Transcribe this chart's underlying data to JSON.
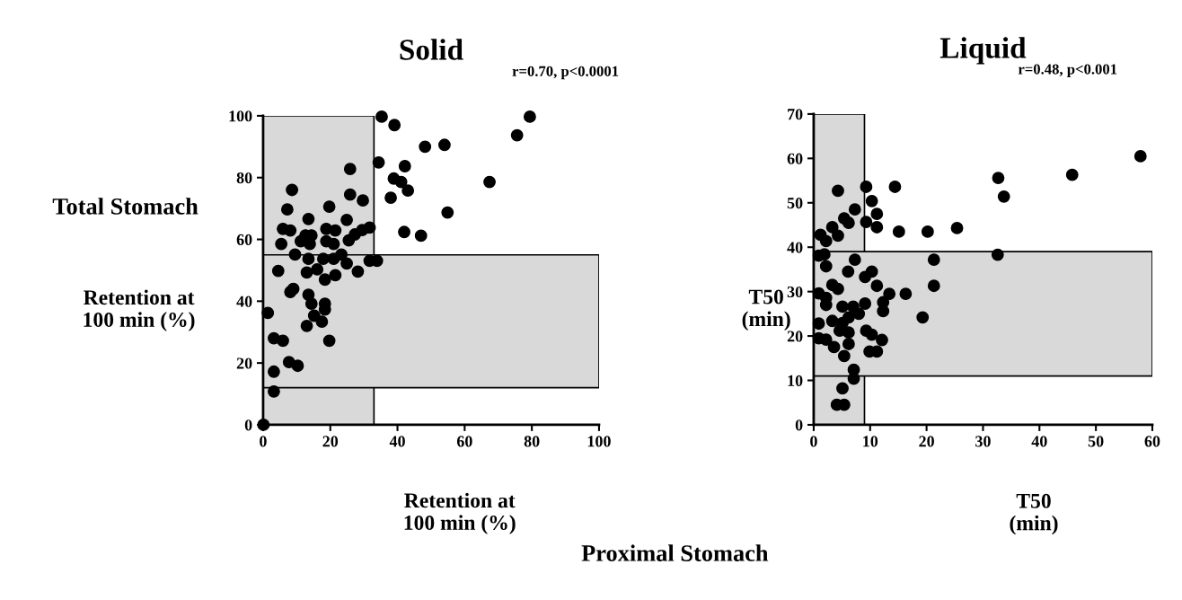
{
  "chart_data": [
    {
      "type": "scatter",
      "title": "Solid",
      "xlabel": "Retention at\n100 min (%)",
      "ylabel": "Retention at\n100 min (%)",
      "annotations": [
        "r=0.70, p<0.0001",
        "Total Stomach"
      ],
      "xlim": [
        0,
        100
      ],
      "ylim": [
        0,
        100
      ],
      "xticks": [
        0,
        20,
        40,
        60,
        80,
        100
      ],
      "yticks": [
        0,
        20,
        40,
        60,
        80,
        100
      ],
      "grid": false,
      "marker": "circle",
      "bands": [
        {
          "axis": "x",
          "from": 0,
          "to": 33,
          "color": "#d9d9d9"
        },
        {
          "axis": "y",
          "from": 12,
          "to": 55,
          "color": "#d9d9d9"
        }
      ],
      "series": [
        {
          "color": "#000000",
          "x": [
            35.3,
            34.4,
            25.9,
            8.6,
            25.9,
            29.7,
            19.7,
            7.2,
            13.5,
            24.9,
            5.9,
            8.1,
            5.4,
            12.6,
            14.4,
            11.2,
            13.9,
            18.8,
            21.5,
            18.8,
            21.0,
            25.5,
            27.3,
            29.5,
            31.7,
            9.5,
            13.5,
            17.9,
            21.0,
            23.3,
            24.9,
            31.7,
            33.9,
            4.5,
            13.0,
            16.1,
            21.5,
            18.4,
            28.2,
            9.0,
            8.1,
            13.5,
            14.4,
            18.4,
            18.4,
            1.4,
            15.2,
            17.5,
            13.0,
            3.2,
            5.9,
            19.7,
            7.7,
            10.3,
            3.2,
            3.2,
            0.1,
            39.1,
            79.4,
            75.6,
            48.2,
            54.0,
            42.2,
            38.9,
            41.1,
            43.1,
            38.0,
            67.4,
            54.9,
            42.0,
            47.0
          ],
          "values": [
            99.7,
            84.9,
            82.8,
            76.0,
            74.5,
            72.6,
            70.6,
            69.7,
            66.6,
            66.3,
            63.4,
            62.9,
            58.5,
            61.3,
            61.3,
            59.4,
            58.5,
            63.4,
            62.9,
            59.4,
            58.5,
            59.7,
            61.6,
            63.0,
            63.8,
            55.1,
            53.7,
            53.7,
            53.7,
            55.1,
            52.2,
            53.1,
            53.1,
            49.8,
            49.3,
            50.3,
            48.4,
            47.0,
            49.6,
            44.0,
            43.0,
            42.1,
            39.2,
            39.2,
            37.3,
            36.2,
            35.3,
            33.4,
            32.0,
            28.0,
            27.2,
            27.2,
            20.3,
            19.1,
            17.2,
            10.8,
            0.0,
            97.0,
            99.7,
            93.7,
            90.0,
            90.6,
            83.7,
            79.7,
            78.6,
            75.8,
            73.5,
            78.6,
            68.7,
            62.4,
            61.2
          ]
        }
      ]
    },
    {
      "type": "scatter",
      "title": "Liquid",
      "xlabel": "T50\n(min)",
      "ylabel": "T50\n(min)",
      "annotations": [
        "r=0.48, p<0.001",
        "Proximal Stomach"
      ],
      "xlim": [
        0,
        60
      ],
      "ylim": [
        0,
        70
      ],
      "xticks": [
        0,
        10,
        20,
        30,
        40,
        50,
        60
      ],
      "yticks": [
        0,
        10,
        20,
        30,
        40,
        50,
        60,
        70
      ],
      "grid": false,
      "marker": "circle",
      "bands": [
        {
          "axis": "x",
          "from": 0,
          "to": 9,
          "color": "#d9d9d9"
        },
        {
          "axis": "y",
          "from": 11,
          "to": 39,
          "color": "#d9d9d9"
        }
      ],
      "series": [
        {
          "color": "#000000",
          "x": [
            4.3,
            9.3,
            14.4,
            10.3,
            11.2,
            7.3,
            5.4,
            6.2,
            9.3,
            11.2,
            3.3,
            4.3,
            1.2,
            2.2,
            15.1,
            20.2,
            1.9,
            0.9,
            2.2,
            7.3,
            6.1,
            10.3,
            9.1,
            11.2,
            3.3,
            4.3,
            0.9,
            2.2,
            2.2,
            13.4,
            16.3,
            12.3,
            12.3,
            5.1,
            7.0,
            9.1,
            8.0,
            19.3,
            3.3,
            5.1,
            6.2,
            0.9,
            4.6,
            6.2,
            9.3,
            10.3,
            0.9,
            2.2,
            3.6,
            6.2,
            12.1,
            5.4,
            9.9,
            11.2,
            7.1,
            7.1,
            5.1,
            4.1,
            5.4,
            21.3,
            21.3,
            57.9,
            45.8,
            32.7,
            33.7,
            25.4,
            32.6
          ],
          "values": [
            52.7,
            53.6,
            53.6,
            50.4,
            47.5,
            48.5,
            46.5,
            45.5,
            45.7,
            44.5,
            44.5,
            42.6,
            42.8,
            41.4,
            43.5,
            43.5,
            38.4,
            38.1,
            35.7,
            37.2,
            34.5,
            34.5,
            33.3,
            31.3,
            31.5,
            30.6,
            29.6,
            28.6,
            27.0,
            29.5,
            29.5,
            27.6,
            25.6,
            26.6,
            26.6,
            27.3,
            25.0,
            24.2,
            23.4,
            22.9,
            24.2,
            22.8,
            21.2,
            20.8,
            21.2,
            20.3,
            19.5,
            19.2,
            17.5,
            18.2,
            19.1,
            15.5,
            16.5,
            16.5,
            12.4,
            10.4,
            8.2,
            4.5,
            4.5,
            37.2,
            31.3,
            60.5,
            56.3,
            55.6,
            51.4,
            44.3,
            38.3
          ]
        }
      ]
    }
  ]
}
